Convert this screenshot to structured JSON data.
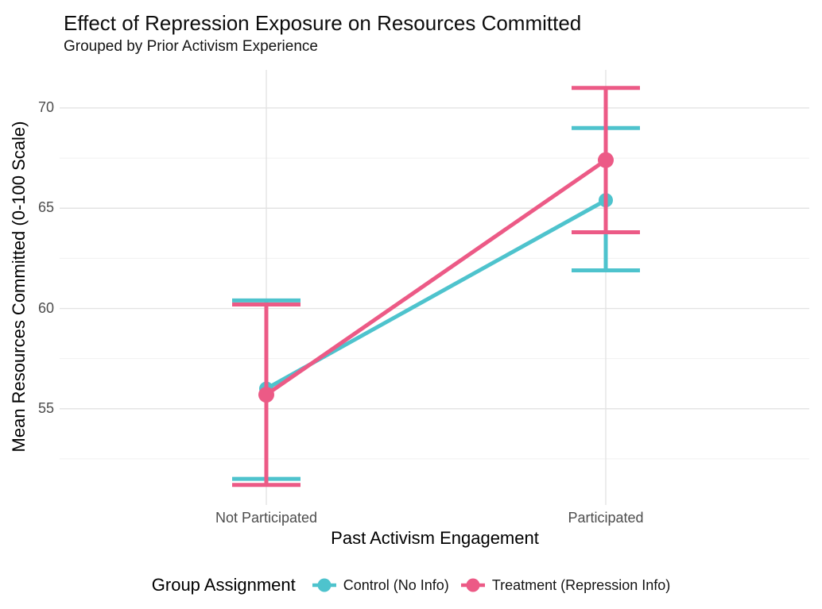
{
  "chart_data": {
    "type": "line",
    "title": "Effect of Repression Exposure on Resources Committed",
    "subtitle": "Grouped by Prior Activism Experience",
    "xlabel": "Past Activism Engagement",
    "ylabel": "Mean Resources Committed (0-100 Scale)",
    "legend_title": "Group Assignment",
    "legend_position": "bottom",
    "categories": [
      "Not Participated",
      "Participated"
    ],
    "series": [
      {
        "name": "Control (No Info)",
        "color": "#4EC3CD",
        "means": [
          56.0,
          65.4
        ],
        "ci_lower": [
          51.5,
          61.9
        ],
        "ci_upper": [
          60.4,
          69.0
        ]
      },
      {
        "name": "Treatment (Repression Info)",
        "color": "#EC5A86",
        "means": [
          55.7,
          67.4
        ],
        "ci_lower": [
          51.2,
          63.8
        ],
        "ci_upper": [
          60.2,
          71.0
        ]
      }
    ],
    "yticks": [
      55,
      60,
      65,
      70
    ],
    "yticks_minor": [
      52.5,
      57.5,
      62.5,
      67.5
    ],
    "ylim": [
      50.2,
      71.9
    ],
    "grid": "horizontal_major_minor_plus_category_verticals",
    "error_bars": true,
    "marker": "point"
  },
  "colors": {
    "background": "#ffffff",
    "title_text": "#0d0d0d",
    "axis_title_text": "#000000",
    "tick_label": "#4d4d4d",
    "grid_major": "#e3e3e3",
    "grid_minor": "#f0f0f0",
    "control": "#4EC3CD",
    "treatment": "#EC5A86"
  }
}
